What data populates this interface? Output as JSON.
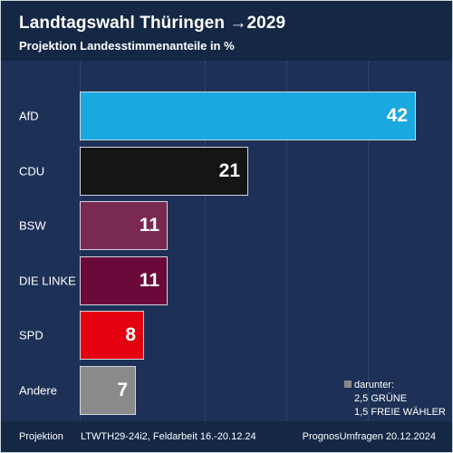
{
  "header": {
    "title": "Landtagswahl Thüringen →2029",
    "subtitle": "Projektion Landesstimmenanteile in %"
  },
  "colors": {
    "background": "#142745",
    "plot_background": "#1d3156",
    "AfD": "#1aa8e0",
    "CDU": "#151515",
    "BSW": "#7a2a52",
    "DIE LINKE": "#6b0a3a",
    "SPD": "#e3000f",
    "Andere": "#8a8a8a"
  },
  "chart_data": {
    "type": "bar",
    "orientation": "horizontal",
    "title": "Landtagswahl Thüringen →2029",
    "subtitle": "Projektion Landesstimmenanteile in %",
    "categories": [
      "AfD",
      "CDU",
      "BSW",
      "DIE LINKE",
      "SPD",
      "Andere"
    ],
    "values": [
      42,
      21,
      11,
      11,
      8,
      7
    ],
    "xlim": [
      0,
      42
    ],
    "grid": true,
    "legend": "none"
  },
  "note": {
    "heading": "darunter:",
    "lines": [
      "2,5 GRÜNE",
      "1,5 FREIE WÄHLER"
    ]
  },
  "footer": {
    "left_label": "Projektion",
    "middle": "LTWTH29-24i2, Feldarbeit 16.-20.12.24",
    "right": "PrognosUmfragen 20.12.2024"
  }
}
